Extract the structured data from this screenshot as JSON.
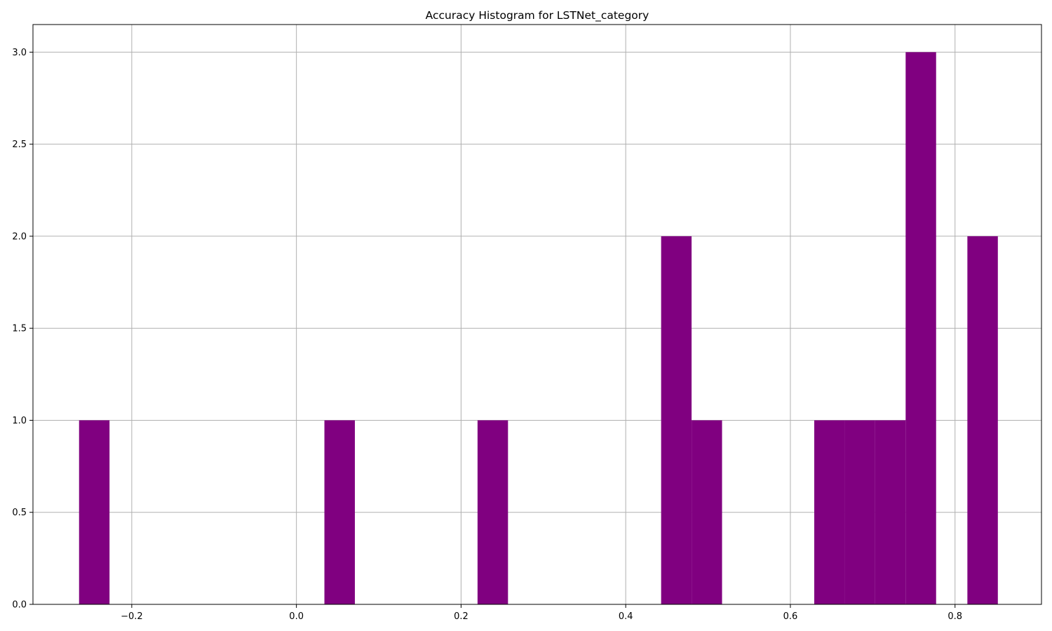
{
  "chart_data": {
    "type": "bar",
    "title": "Accuracy Histogram for LSTNet_category",
    "xlabel": "",
    "ylabel": "",
    "xlim": [
      -0.32,
      0.905
    ],
    "ylim": [
      0,
      3.15
    ],
    "x_ticks": [
      -0.2,
      0.0,
      0.2,
      0.4,
      0.6,
      0.8
    ],
    "x_tick_labels": [
      "−0.2",
      "0.0",
      "0.2",
      "0.4",
      "0.6",
      "0.8"
    ],
    "y_ticks": [
      0.0,
      0.5,
      1.0,
      1.5,
      2.0,
      2.5,
      3.0
    ],
    "y_tick_labels": [
      "0.0",
      "0.5",
      "1.0",
      "1.5",
      "2.0",
      "2.5",
      "3.0"
    ],
    "grid": true,
    "bar_color": "#800080",
    "bins": [
      {
        "x0": -0.264,
        "x1": -0.227,
        "count": 1
      },
      {
        "x0": 0.034,
        "x1": 0.071,
        "count": 1
      },
      {
        "x0": 0.22,
        "x1": 0.257,
        "count": 1
      },
      {
        "x0": 0.443,
        "x1": 0.48,
        "count": 2
      },
      {
        "x0": 0.48,
        "x1": 0.517,
        "count": 1
      },
      {
        "x0": 0.629,
        "x1": 0.666,
        "count": 1
      },
      {
        "x0": 0.666,
        "x1": 0.703,
        "count": 1
      },
      {
        "x0": 0.703,
        "x1": 0.74,
        "count": 1
      },
      {
        "x0": 0.74,
        "x1": 0.777,
        "count": 3
      },
      {
        "x0": 0.815,
        "x1": 0.852,
        "count": 2
      }
    ]
  }
}
